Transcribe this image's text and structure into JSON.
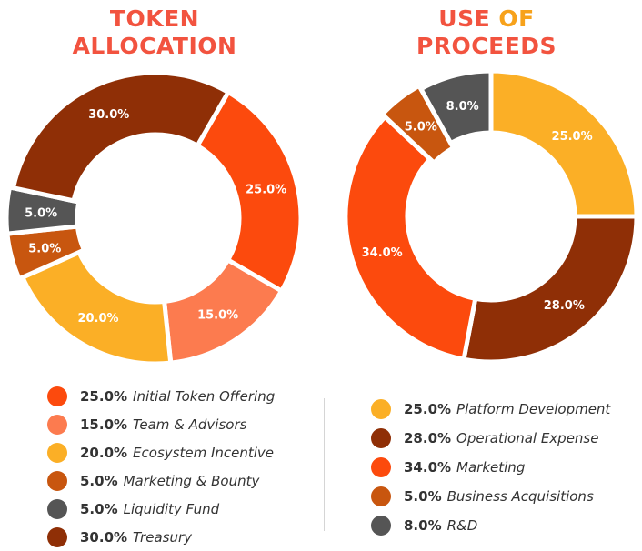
{
  "chart_data": [
    {
      "type": "pie",
      "variant": "donut",
      "title_part1": "TOKEN",
      "title_part2": "ALLOCATION",
      "slices": [
        {
          "label": "Initial Token Offering",
          "value": 25.0,
          "value_label": "25.0%",
          "color": "#fc4a0d"
        },
        {
          "label": "Team & Advisors",
          "value": 15.0,
          "value_label": "15.0%",
          "color": "#fc7b4f"
        },
        {
          "label": "Ecosystem Incentive",
          "value": 20.0,
          "value_label": "20.0%",
          "color": "#fbaf26"
        },
        {
          "label": "Marketing & Bounty",
          "value": 5.0,
          "value_label": "5.0%",
          "color": "#c8560f"
        },
        {
          "label": "Liquidity Fund",
          "value": 5.0,
          "value_label": "5.0%",
          "color": "#555555"
        },
        {
          "label": "Treasury",
          "value": 30.0,
          "value_label": "30.0%",
          "color": "#8f2f06"
        }
      ],
      "legend_placement": "bottom"
    },
    {
      "type": "pie",
      "variant": "donut",
      "title_part1": "USE",
      "title_of": "OF",
      "title_part2": "PROCEEDS",
      "slices": [
        {
          "label": "Platform Development",
          "value": 25.0,
          "value_label": "25.0%",
          "color": "#fbaf26"
        },
        {
          "label": "Operational Expense",
          "value": 28.0,
          "value_label": "28.0%",
          "color": "#8f2f06"
        },
        {
          "label": "Marketing",
          "value": 34.0,
          "value_label": "34.0%",
          "color": "#fc4a0d"
        },
        {
          "label": "Business Acquisitions",
          "value": 5.0,
          "value_label": "5.0%",
          "color": "#c8560f"
        },
        {
          "label": "R&D",
          "value": 8.0,
          "value_label": "8.0%",
          "color": "#555555"
        }
      ],
      "legend_placement": "bottom"
    }
  ]
}
